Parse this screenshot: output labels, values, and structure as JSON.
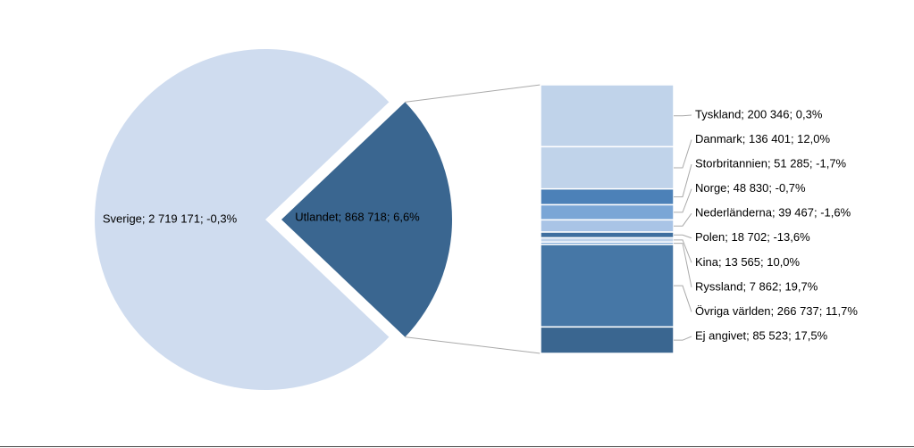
{
  "chart_data": {
    "type": "pie-of-bar",
    "pie": {
      "values": [
        2719171,
        868718
      ],
      "value_labels": [
        "Sverige; 2 719 171; -0,3%",
        "Utlandet; 868 718; 6,6%"
      ],
      "colors": [
        "#cfdcef",
        "#3a6690"
      ]
    },
    "bar": {
      "values": [
        200346,
        136401,
        51285,
        48830,
        39467,
        18702,
        13565,
        7862,
        266737,
        85523
      ],
      "value_labels": [
        "Tyskland; 200 346; 0,3%",
        "Danmark; 136 401; 12,0%",
        "Storbritannien; 51 285; -1,7%",
        "Norge; 48 830; -0,7%",
        "Nederländerna; 39 467; -1,6%",
        "Polen; 18 702; -13,6%",
        "Kina; 13 565; 10,0%",
        "Ryssland; 7 862; 19,7%",
        "Övriga världen; 266 737; 11,7%",
        "Ej angivet; 85 523; 17,5%"
      ],
      "colors": [
        "#c0d3ea",
        "#c0d3ea",
        "#4c81b8",
        "#7aa6d6",
        "#a9c4e6",
        "#3f6f9f",
        "#c0d3ea",
        "#7aa6d6",
        "#4677a6",
        "#3a6690"
      ]
    }
  }
}
